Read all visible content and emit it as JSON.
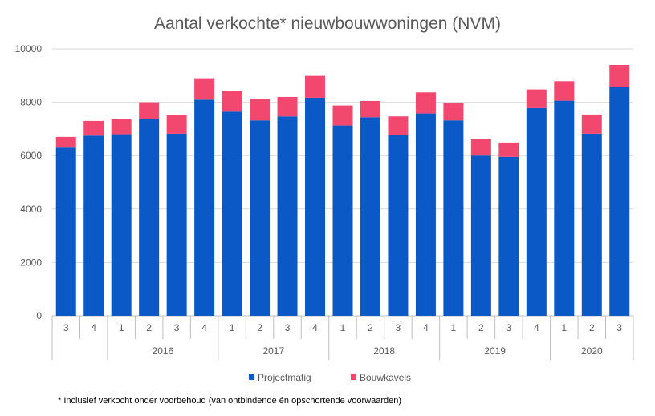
{
  "chart_data": {
    "type": "bar",
    "stacked": true,
    "title": "Aantal verkochte* nieuwbouwwoningen (NVM)",
    "quarters": [
      "3",
      "4",
      "1",
      "2",
      "3",
      "4",
      "1",
      "2",
      "3",
      "4",
      "1",
      "2",
      "3",
      "4",
      "1",
      "2",
      "3",
      "4",
      "1",
      "2",
      "3"
    ],
    "year_groups": [
      {
        "label": "",
        "count": 2
      },
      {
        "label": "2016",
        "count": 4
      },
      {
        "label": "2017",
        "count": 4
      },
      {
        "label": "2018",
        "count": 4
      },
      {
        "label": "2019",
        "count": 4
      },
      {
        "label": "2020",
        "count": 3
      }
    ],
    "ylim": [
      0,
      10000
    ],
    "yticks": [
      0,
      2000,
      4000,
      6000,
      8000,
      10000
    ],
    "series": [
      {
        "name": "Projectmatig",
        "color": "#0b59c6",
        "values": [
          6300,
          6750,
          6800,
          7380,
          6820,
          8100,
          7650,
          7320,
          7470,
          8170,
          7130,
          7440,
          6770,
          7580,
          7320,
          6000,
          5950,
          7780,
          8060,
          6820,
          8580
        ]
      },
      {
        "name": "Bouwkavels",
        "color": "#f2476e",
        "values": [
          400,
          550,
          560,
          620,
          700,
          800,
          780,
          810,
          730,
          820,
          750,
          610,
          700,
          790,
          650,
          620,
          540,
          700,
          730,
          720,
          820
        ]
      }
    ],
    "legend_position": "bottom",
    "gridlines": true
  },
  "footnote": "* Inclusief verkocht onder voorbehoud (van ontbindende én opschortende voorwaarden)"
}
